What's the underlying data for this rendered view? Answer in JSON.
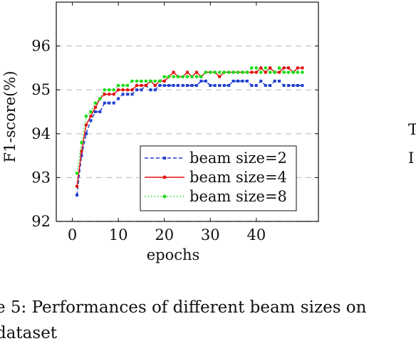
{
  "chart_data": {
    "type": "line",
    "title": "",
    "xlabel": "epochs",
    "ylabel": "F1-score(%)",
    "xlim": [
      -3.5,
      53.5
    ],
    "ylim": [
      92,
      97
    ],
    "x_ticks": [
      0,
      10,
      20,
      30,
      40
    ],
    "y_ticks": [
      92,
      93,
      94,
      95,
      96
    ],
    "x_tick_labels": [
      "0",
      "10",
      "20",
      "30",
      "40"
    ],
    "y_tick_labels": [
      "92",
      "93",
      "94",
      "95",
      "96"
    ],
    "grid": "horizontal dashed",
    "legend_position": "bottom-right",
    "x": [
      1,
      2,
      3,
      4,
      5,
      6,
      7,
      8,
      9,
      10,
      11,
      12,
      13,
      14,
      15,
      16,
      17,
      18,
      19,
      20,
      21,
      22,
      23,
      24,
      25,
      26,
      27,
      28,
      29,
      30,
      31,
      32,
      33,
      34,
      35,
      36,
      37,
      38,
      39,
      40,
      41,
      42,
      43,
      44,
      45,
      46,
      47,
      48,
      49,
      50
    ],
    "series": [
      {
        "name": "beam size=2",
        "color": "#1f3fd1",
        "line_style": "dashed",
        "marker": "square",
        "values": [
          92.6,
          93.5,
          94.0,
          94.3,
          94.5,
          94.5,
          94.7,
          94.7,
          94.7,
          94.8,
          94.9,
          94.9,
          94.9,
          95.0,
          95.0,
          95.1,
          95.0,
          95.0,
          95.1,
          95.1,
          95.1,
          95.1,
          95.1,
          95.1,
          95.1,
          95.1,
          95.1,
          95.2,
          95.2,
          95.1,
          95.1,
          95.1,
          95.1,
          95.1,
          95.2,
          95.2,
          95.2,
          95.2,
          95.1,
          95.1,
          95.2,
          95.1,
          95.1,
          95.2,
          95.2,
          95.1,
          95.1,
          95.1,
          95.1,
          95.1
        ]
      },
      {
        "name": "beam size=4",
        "color": "#e01414",
        "line_style": "solid",
        "marker": "circle",
        "values": [
          92.8,
          93.6,
          94.2,
          94.4,
          94.6,
          94.8,
          94.9,
          94.9,
          94.9,
          95.0,
          95.0,
          95.0,
          95.0,
          95.1,
          95.1,
          95.1,
          95.2,
          95.1,
          95.2,
          95.2,
          95.3,
          95.4,
          95.3,
          95.3,
          95.4,
          95.3,
          95.4,
          95.3,
          95.4,
          95.4,
          95.4,
          95.3,
          95.4,
          95.4,
          95.4,
          95.4,
          95.4,
          95.4,
          95.4,
          95.4,
          95.5,
          95.4,
          95.5,
          95.4,
          95.4,
          95.5,
          95.5,
          95.4,
          95.5,
          95.5
        ]
      },
      {
        "name": "beam size=8",
        "color": "#17dd17",
        "line_style": "dotted",
        "marker": "circle",
        "values": [
          93.1,
          93.8,
          94.4,
          94.5,
          94.7,
          94.8,
          95.0,
          95.0,
          95.0,
          95.1,
          95.1,
          95.1,
          95.2,
          95.2,
          95.2,
          95.2,
          95.2,
          95.2,
          95.2,
          95.3,
          95.3,
          95.3,
          95.3,
          95.3,
          95.3,
          95.3,
          95.3,
          95.3,
          95.4,
          95.4,
          95.4,
          95.4,
          95.4,
          95.4,
          95.4,
          95.4,
          95.4,
          95.4,
          95.5,
          95.5,
          95.4,
          95.5,
          95.4,
          95.4,
          95.5,
          95.4,
          95.4,
          95.4,
          95.4,
          95.4
        ]
      }
    ]
  },
  "caption": {
    "line1": "e 5: Performances of different beam sizes on",
    "line2": "dataset"
  },
  "right_fragment": {
    "line1": "T",
    "line2": "I"
  }
}
